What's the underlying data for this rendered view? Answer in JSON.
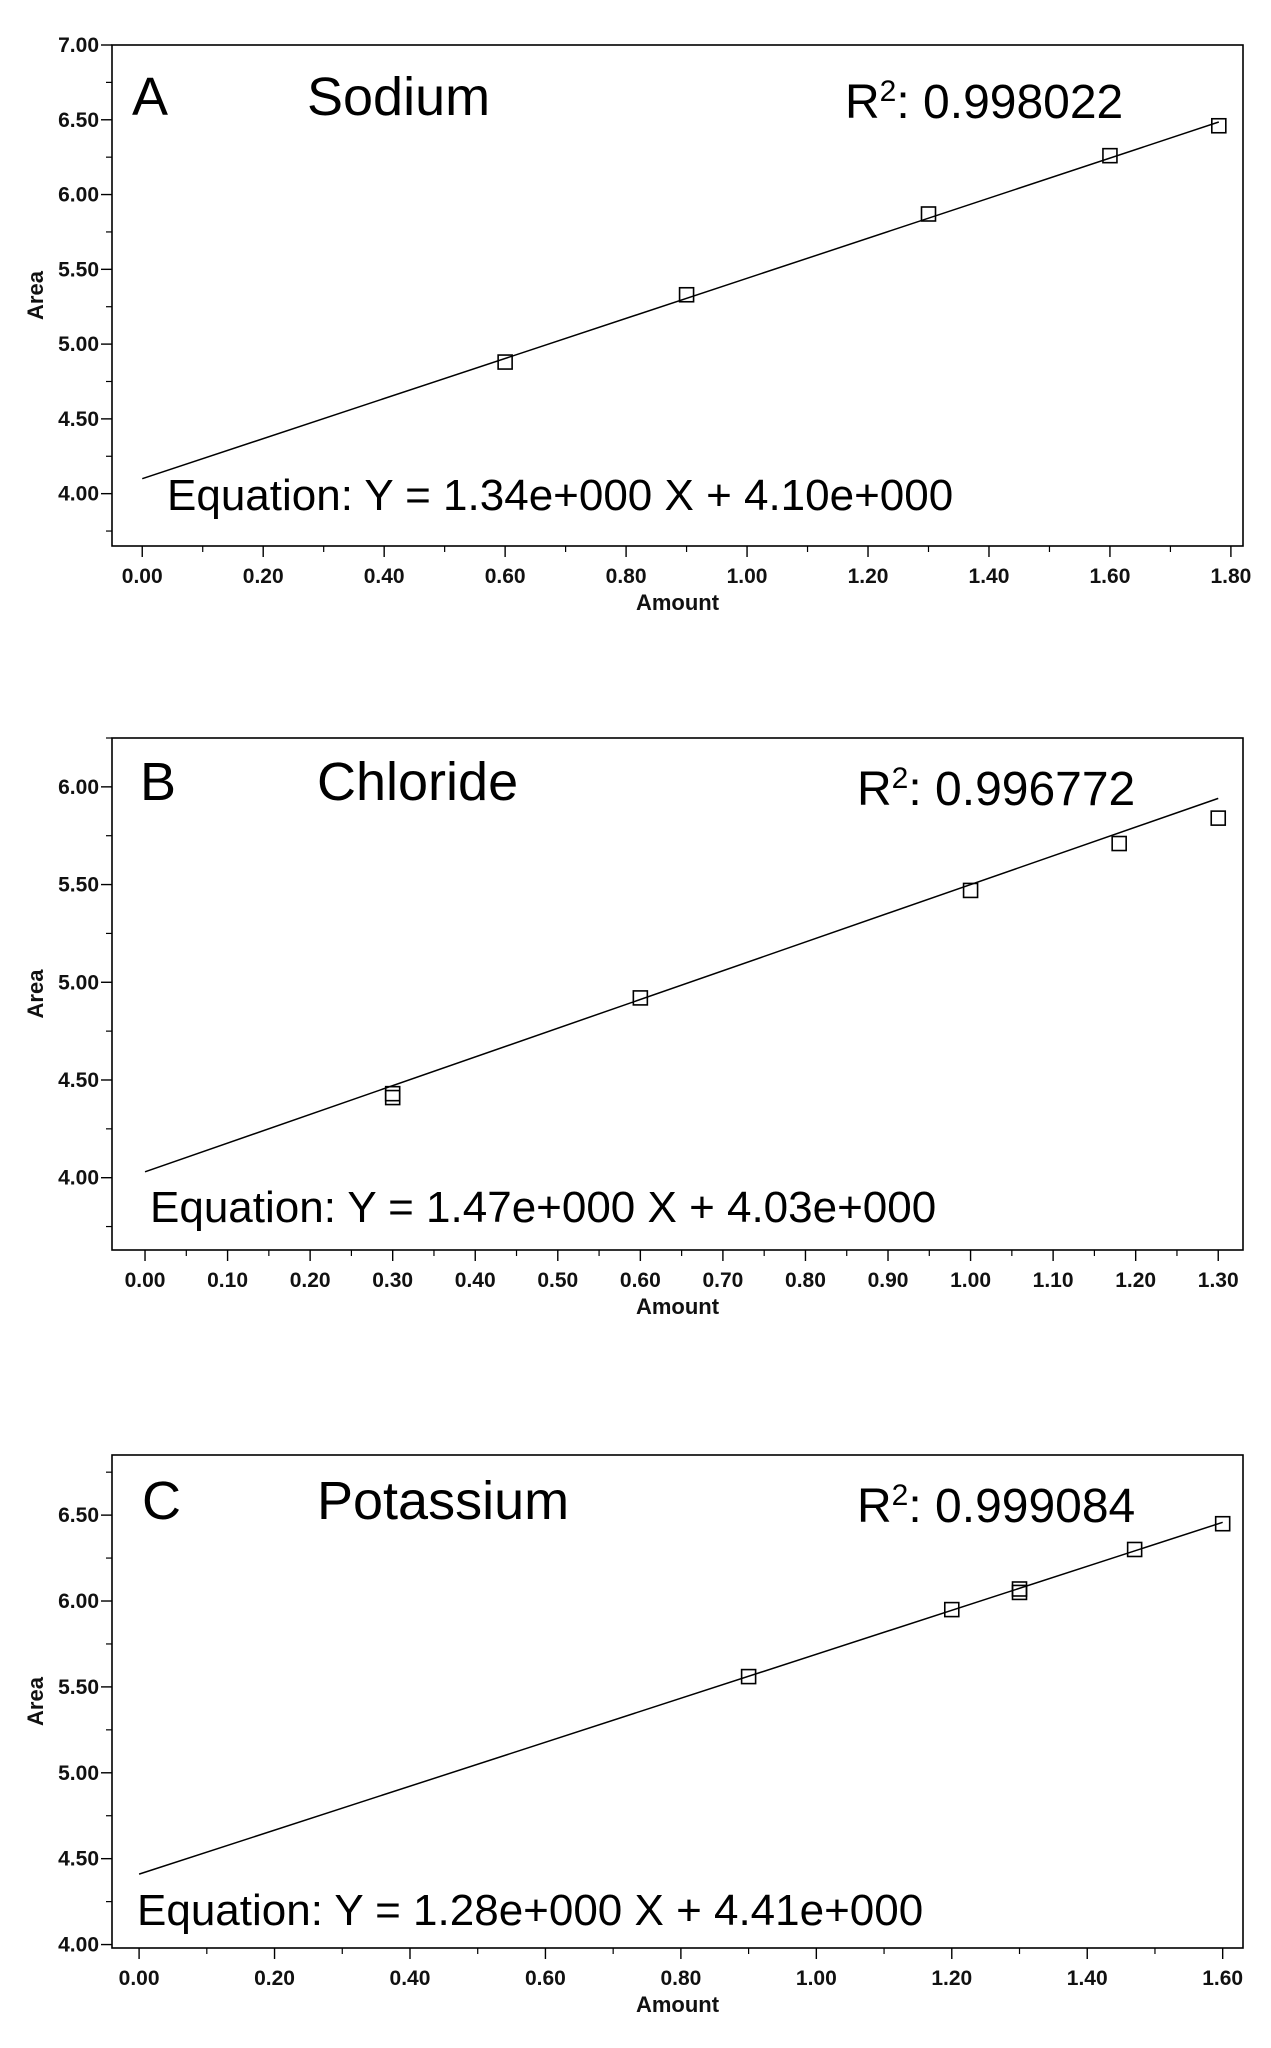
{
  "chart_data": [
    {
      "type": "scatter",
      "panel_letter": "A",
      "title": "Sodium",
      "r2_label": "R",
      "r2_sup": "2",
      "r2_value": ": 0.998022",
      "equation": "Equation: Y = 1.34e+000 X + 4.10e+000",
      "xlabel": "Amount",
      "ylabel": "Area",
      "xlim": [
        -0.05,
        1.82
      ],
      "ylim": [
        3.65,
        7.0
      ],
      "x_ticks": [
        0.0,
        0.2,
        0.4,
        0.6,
        0.8,
        1.0,
        1.2,
        1.4,
        1.6,
        1.8
      ],
      "x_tick_labels": [
        "0.00",
        "0.20",
        "0.40",
        "0.60",
        "0.80",
        "1.00",
        "1.20",
        "1.40",
        "1.60",
        "1.80"
      ],
      "y_ticks": [
        4.0,
        4.5,
        5.0,
        5.5,
        6.0,
        6.5,
        7.0
      ],
      "y_tick_labels": [
        "4.00",
        "4.50",
        "5.00",
        "5.50",
        "6.00",
        "6.50",
        "7.00"
      ],
      "points": [
        {
          "x": 0.6,
          "y": 4.88
        },
        {
          "x": 0.9,
          "y": 5.33
        },
        {
          "x": 1.3,
          "y": 5.87
        },
        {
          "x": 1.6,
          "y": 6.26
        },
        {
          "x": 1.78,
          "y": 6.46
        }
      ],
      "fit": {
        "slope": 1.34,
        "intercept": 4.1,
        "x_start": 0.0,
        "x_end": 1.78
      },
      "grid": false,
      "legend": "none"
    },
    {
      "type": "scatter",
      "panel_letter": "B",
      "title": "Chloride",
      "r2_label": "R",
      "r2_sup": "2",
      "r2_value": ": 0.996772",
      "equation": "Equation: Y = 1.47e+000 X + 4.03e+000",
      "xlabel": "Amount",
      "ylabel": "Area",
      "xlim": [
        -0.04,
        1.33
      ],
      "ylim": [
        3.63,
        6.25
      ],
      "x_ticks": [
        0.0,
        0.1,
        0.2,
        0.3,
        0.4,
        0.5,
        0.6,
        0.7,
        0.8,
        0.9,
        1.0,
        1.1,
        1.2,
        1.3
      ],
      "x_tick_labels": [
        "0.00",
        "0.10",
        "0.20",
        "0.30",
        "0.40",
        "0.50",
        "0.60",
        "0.70",
        "0.80",
        "0.90",
        "1.00",
        "1.10",
        "1.20",
        "1.30"
      ],
      "y_ticks": [
        4.0,
        4.5,
        5.0,
        5.5,
        6.0
      ],
      "y_tick_labels": [
        "4.00",
        "4.50",
        "5.00",
        "5.50",
        "6.00"
      ],
      "points": [
        {
          "x": 0.3,
          "y": 4.43
        },
        {
          "x": 0.3,
          "y": 4.41
        },
        {
          "x": 0.6,
          "y": 4.92
        },
        {
          "x": 1.0,
          "y": 5.47
        },
        {
          "x": 1.18,
          "y": 5.71
        },
        {
          "x": 1.3,
          "y": 5.84
        }
      ],
      "fit": {
        "slope": 1.47,
        "intercept": 4.03,
        "x_start": 0.0,
        "x_end": 1.3
      },
      "grid": false,
      "legend": "none"
    },
    {
      "type": "scatter",
      "panel_letter": "C",
      "title": "Potassium",
      "r2_label": "R",
      "r2_sup": "2",
      "r2_value": ": 0.999084",
      "equation": "Equation: Y = 1.28e+000 X + 4.41e+000",
      "xlabel": "Amount",
      "ylabel": "Area",
      "xlim": [
        -0.04,
        1.63
      ],
      "ylim": [
        3.98,
        6.85
      ],
      "x_ticks": [
        0.0,
        0.2,
        0.4,
        0.6,
        0.8,
        1.0,
        1.2,
        1.4,
        1.6
      ],
      "x_tick_labels": [
        "0.00",
        "0.20",
        "0.40",
        "0.60",
        "0.80",
        "1.00",
        "1.20",
        "1.40",
        "1.60"
      ],
      "y_ticks": [
        4.0,
        4.5,
        5.0,
        5.5,
        6.0,
        6.5
      ],
      "y_tick_labels": [
        "4.00",
        "4.50",
        "5.00",
        "5.50",
        "6.00",
        "6.50"
      ],
      "points": [
        {
          "x": 0.9,
          "y": 5.56
        },
        {
          "x": 1.2,
          "y": 5.95
        },
        {
          "x": 1.3,
          "y": 6.07
        },
        {
          "x": 1.3,
          "y": 6.05
        },
        {
          "x": 1.47,
          "y": 6.3
        },
        {
          "x": 1.6,
          "y": 6.45
        }
      ],
      "fit": {
        "slope": 1.28,
        "intercept": 4.41,
        "x_start": 0.0,
        "x_end": 1.6
      },
      "grid": false,
      "legend": "none"
    }
  ]
}
